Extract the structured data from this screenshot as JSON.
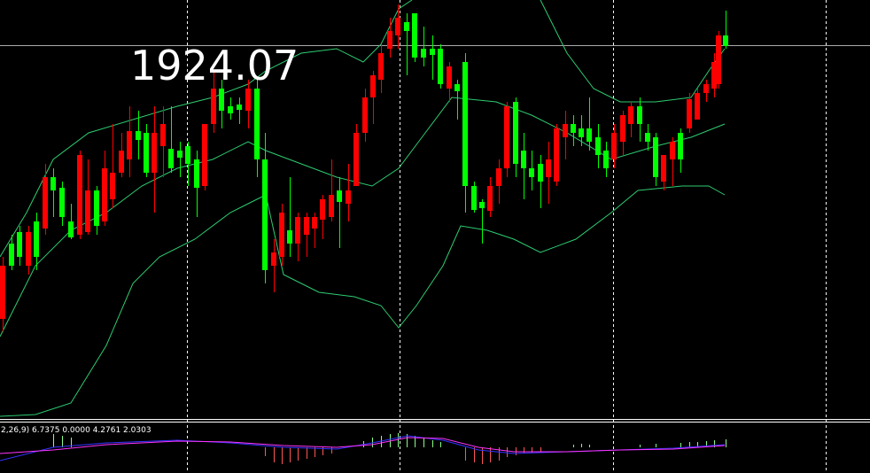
{
  "overlay_label": "1924.07",
  "indicator_label": "2,26,9) 6.7375 0.0000 4.2761 2.0303"
}
